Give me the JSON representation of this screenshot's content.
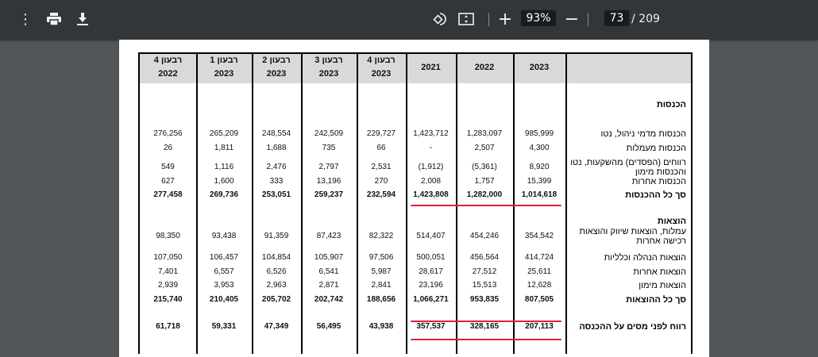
{
  "toolbar": {
    "menu_icon": "more-vert-icon",
    "print_icon": "print-icon",
    "download_icon": "download-icon",
    "rotate_icon": "rotate-icon",
    "fit_icon": "fit-page-icon",
    "zoom_in": "+",
    "zoom_level": "93%",
    "zoom_out": "−",
    "page_current": "73",
    "page_total": "/ 209"
  },
  "table": {
    "columns": [
      {
        "line1": "רבעון 4",
        "line2": "2022"
      },
      {
        "line1": "רבעון 1",
        "line2": "2023"
      },
      {
        "line1": "רבעון 2",
        "line2": "2023"
      },
      {
        "line1": "רבעון 3",
        "line2": "2023"
      },
      {
        "line1": "רבעון 4",
        "line2": "2023"
      },
      {
        "line1": "",
        "line2": "2021"
      },
      {
        "line1": "",
        "line2": "2022"
      },
      {
        "line1": "",
        "line2": "2023"
      }
    ],
    "rows": [
      {
        "label": "הכנסות",
        "bold": true,
        "values": []
      },
      {
        "label": "הכנסות מדמי ניהול, נטו",
        "values": [
          "276,256",
          "265,209",
          "248,554",
          "242,509",
          "229,727",
          "1,423,712",
          "1,283,097",
          "985,999"
        ]
      },
      {
        "label": "הכנסות מעמלות",
        "values": [
          "26",
          "1,811",
          "1,688",
          "735",
          "66",
          "-",
          "2,507",
          "4,300"
        ]
      },
      {
        "label": "רווחים (הפסדים) מהשקעות, נטו והכנסות מימון",
        "values": [
          "549",
          "1,116",
          "2,476",
          "2,797",
          "2,531",
          "(1,912)",
          "(5,361)",
          "8,920"
        ]
      },
      {
        "label": "הכנסות אחרות",
        "values": [
          "627",
          "1,600",
          "333",
          "13,196",
          "270",
          "2,008",
          "1,757",
          "15,399"
        ]
      },
      {
        "label": "סך כל ההכנסות",
        "bold": true,
        "values": [
          "277,458",
          "269,736",
          "253,051",
          "259,237",
          "232,594",
          "1,423,808",
          "1,282,000",
          "1,014,618"
        ]
      },
      {
        "label": "הוצאות",
        "bold": true,
        "values": []
      },
      {
        "label": "עמלות, הוצאות שיווק והוצאות רכישה אחרות",
        "values": [
          "98,350",
          "93,438",
          "91,359",
          "87,423",
          "82,322",
          "514,407",
          "454,246",
          "354,542"
        ]
      },
      {
        "label": "הוצאות הנהלה וכלליות",
        "values": [
          "107,050",
          "106,457",
          "104,854",
          "105,907",
          "97,506",
          "500,051",
          "456,564",
          "414,724"
        ]
      },
      {
        "label": "הוצאות אחרות",
        "values": [
          "7,401",
          "6,557",
          "6,526",
          "6,541",
          "5,987",
          "28,617",
          "27,512",
          "25,611"
        ]
      },
      {
        "label": "הוצאות מימון",
        "values": [
          "2,939",
          "3,953",
          "2,963",
          "2,871",
          "2,841",
          "23,196",
          "15,513",
          "12,628"
        ]
      },
      {
        "label": "סך כל ההוצאות",
        "bold": true,
        "values": [
          "215,740",
          "210,405",
          "205,702",
          "202,742",
          "188,656",
          "1,066,271",
          "953,835",
          "807,505"
        ]
      },
      {
        "label": "רווח לפני מסים על ההכנסה",
        "bold": true,
        "values": [
          "61,718",
          "59,331",
          "47,349",
          "56,495",
          "43,938",
          "357,537",
          "328,165",
          "207,113"
        ]
      }
    ]
  },
  "colors": {
    "toolbar": "#323639",
    "viewer_bg": "#525659",
    "header_fill": "#d9d9d9",
    "highlight": "#e0203a"
  }
}
